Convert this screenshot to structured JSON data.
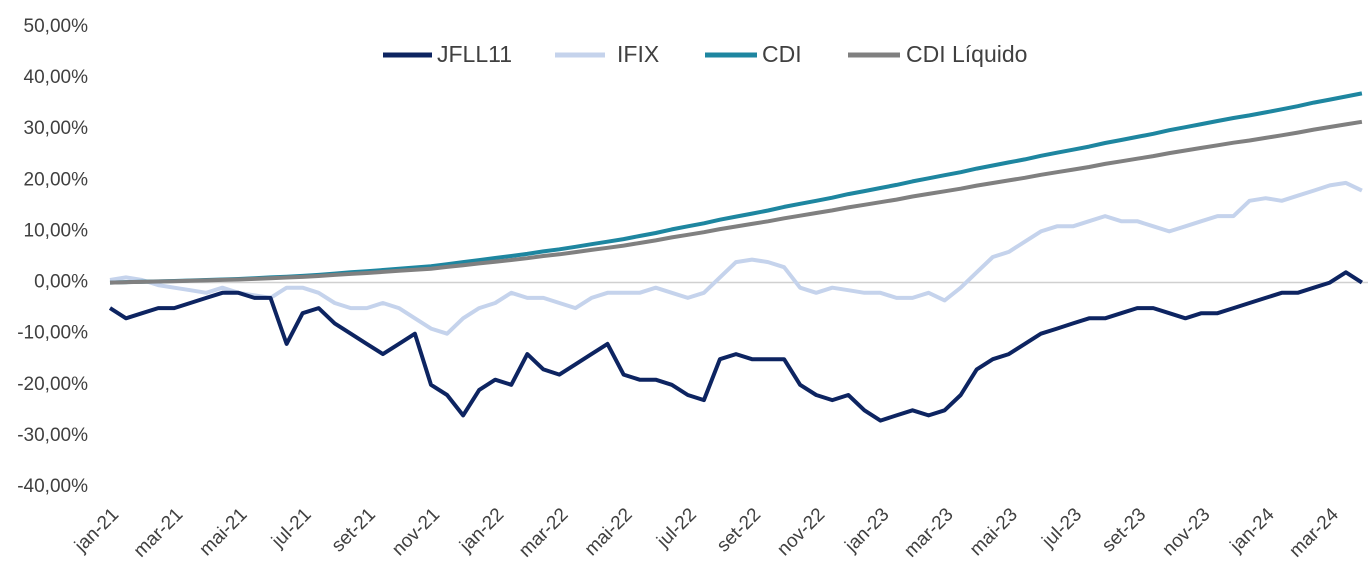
{
  "chart_data": {
    "type": "line",
    "categories": [
      "jan-21",
      null,
      null,
      null,
      "mar-21",
      null,
      null,
      null,
      "mai-21",
      null,
      null,
      null,
      "jul-21",
      null,
      null,
      null,
      "set-21",
      null,
      null,
      null,
      "nov-21",
      null,
      null,
      null,
      "jan-22",
      null,
      null,
      null,
      "mar-22",
      null,
      null,
      null,
      "mai-22",
      null,
      null,
      null,
      "jul-22",
      null,
      null,
      null,
      "set-22",
      null,
      null,
      null,
      "nov-22",
      null,
      null,
      null,
      "jan-23",
      null,
      null,
      null,
      "mar-23",
      null,
      null,
      null,
      "mai-23",
      null,
      null,
      null,
      "jul-23",
      null,
      null,
      null,
      "set-23",
      null,
      null,
      null,
      "nov-23",
      null,
      null,
      null,
      "jan-24",
      null,
      null,
      null,
      "mar-24",
      null,
      null
    ],
    "series": [
      {
        "name": "JFLL11",
        "color": "#0d2461",
        "values": [
          -5,
          -7,
          -6,
          -5,
          -5,
          -4,
          -3,
          -2,
          -2,
          -3,
          -3,
          -12,
          -6,
          -5,
          -8,
          -10,
          -12,
          -14,
          -12,
          -10,
          -20,
          -22,
          -26,
          -21,
          -19,
          -20,
          -14,
          -17,
          -18,
          -16,
          -14,
          -12,
          -18,
          -19,
          -19,
          -20,
          -22,
          -23,
          -15,
          -14,
          -15,
          -15,
          -15,
          -20,
          -22,
          -23,
          -22,
          -25,
          -27,
          -26,
          -25,
          -26,
          -25,
          -22,
          -17,
          -15,
          -14,
          -12,
          -10,
          -9,
          -8,
          -7,
          -7,
          -6,
          -5,
          -5,
          -6,
          -7,
          -6,
          -6,
          -5,
          -4,
          -3,
          -2,
          -2,
          -1,
          0,
          2,
          0
        ]
      },
      {
        "name": "IFIX",
        "color": "#c5d3ec",
        "values": [
          0.5,
          1,
          0.5,
          -0.5,
          -1,
          -1.5,
          -2,
          -1,
          -2,
          -2.5,
          -3,
          -1,
          -1,
          -2,
          -4,
          -5,
          -5,
          -4,
          -5,
          -7,
          -9,
          -10,
          -7,
          -5,
          -4,
          -2,
          -3,
          -3,
          -4,
          -5,
          -3,
          -2,
          -2,
          -2,
          -1,
          -2,
          -3,
          -2,
          1,
          4,
          4.5,
          4,
          3,
          -1,
          -2,
          -1,
          -1.5,
          -2,
          -2,
          -3,
          -3,
          -2,
          -3.5,
          -1,
          2,
          5,
          6,
          8,
          10,
          11,
          11,
          12,
          13,
          12,
          12,
          11,
          10,
          11,
          12,
          13,
          13,
          16,
          16.5,
          16,
          17,
          18,
          19,
          19.5,
          18
        ]
      },
      {
        "name": "CDI",
        "color": "#1e86a0",
        "values": [
          0,
          0.08,
          0.15,
          0.23,
          0.3,
          0.4,
          0.5,
          0.6,
          0.7,
          0.85,
          1,
          1.15,
          1.3,
          1.5,
          1.75,
          2,
          2.2,
          2.45,
          2.7,
          2.95,
          3.2,
          3.6,
          4,
          4.4,
          4.8,
          5.2,
          5.6,
          6.1,
          6.5,
          7,
          7.5,
          8,
          8.5,
          9.1,
          9.7,
          10.4,
          11,
          11.6,
          12.3,
          12.9,
          13.5,
          14.1,
          14.8,
          15.4,
          16,
          16.6,
          17.3,
          17.9,
          18.5,
          19.1,
          19.8,
          20.4,
          21,
          21.6,
          22.3,
          22.9,
          23.5,
          24.1,
          24.8,
          25.4,
          26,
          26.6,
          27.3,
          27.9,
          28.5,
          29.1,
          29.8,
          30.4,
          31,
          31.6,
          32.2,
          32.7,
          33.3,
          33.9,
          34.5,
          35.2,
          35.8,
          36.4,
          37
        ]
      },
      {
        "name": "CDI Líquido",
        "color": "#808080",
        "values": [
          0,
          0.07,
          0.13,
          0.2,
          0.26,
          0.34,
          0.43,
          0.51,
          0.6,
          0.72,
          0.85,
          0.98,
          1.1,
          1.28,
          1.49,
          1.7,
          1.87,
          2.08,
          2.3,
          2.5,
          2.72,
          3.06,
          3.4,
          3.74,
          4.08,
          4.42,
          4.76,
          5.19,
          5.53,
          5.95,
          6.38,
          6.8,
          7.23,
          7.74,
          8.25,
          8.84,
          9.35,
          9.86,
          10.46,
          10.97,
          11.48,
          11.99,
          12.58,
          13.09,
          13.6,
          14.11,
          14.71,
          15.22,
          15.73,
          16.24,
          16.83,
          17.34,
          17.85,
          18.36,
          18.96,
          19.47,
          19.98,
          20.49,
          21.08,
          21.59,
          22.1,
          22.61,
          23.21,
          23.72,
          24.23,
          24.74,
          25.33,
          25.84,
          26.35,
          26.86,
          27.37,
          27.8,
          28.31,
          28.82,
          29.33,
          29.92,
          30.43,
          30.94,
          31.45
        ]
      }
    ],
    "ylim": [
      -40,
      50
    ],
    "yticks": [
      {
        "value": -40,
        "label": "-40,00%"
      },
      {
        "value": -30,
        "label": "-30,00%"
      },
      {
        "value": -20,
        "label": "-20,00%"
      },
      {
        "value": -10,
        "label": "-10,00%"
      },
      {
        "value": 0,
        "label": "0,00%"
      },
      {
        "value": 10,
        "label": "10,00%"
      },
      {
        "value": 20,
        "label": "20,00%"
      },
      {
        "value": 30,
        "label": "30,00%"
      },
      {
        "value": 40,
        "label": "40,00%"
      },
      {
        "value": 50,
        "label": "50,00%"
      }
    ],
    "legend": "top"
  }
}
